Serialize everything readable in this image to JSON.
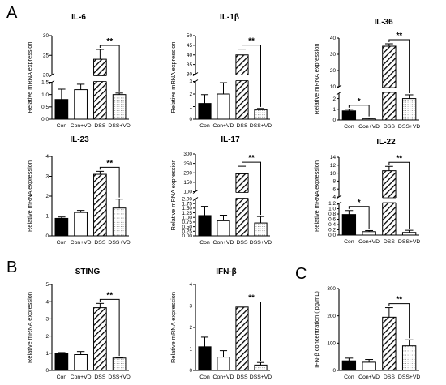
{
  "figure": {
    "panel_labels": [
      "A",
      "B",
      "C"
    ],
    "colors": {
      "ink": "#000000",
      "background": "#ffffff"
    },
    "fills": [
      "solid-black",
      "white",
      "diagonal-hatch",
      "dotted"
    ]
  },
  "chart_data": [
    {
      "id": "il6",
      "type": "bar",
      "title": "IL-6",
      "xlabel": "",
      "ylabel": "Relative mRNA expression",
      "categories": [
        "Con",
        "Con+VD",
        "DSS",
        "DSS+VD"
      ],
      "values": [
        0.8,
        1.2,
        24.0,
        1.0
      ],
      "errors": [
        0.42,
        0.22,
        2.5,
        0.06
      ],
      "axis_breaks": true,
      "ylim": [
        0,
        30
      ],
      "segments": [
        {
          "range": [
            0,
            1.5
          ],
          "ticks": [
            0.0,
            0.5,
            1.0,
            1.5
          ],
          "labels": [
            "0.0",
            "0.5",
            "1.0",
            "1.5"
          ]
        },
        {
          "range": [
            20,
            30
          ],
          "ticks": [
            20,
            25,
            30
          ],
          "labels": [
            "20",
            "25",
            "30"
          ]
        }
      ],
      "significance": [
        {
          "from": 2,
          "to": 3,
          "label": "**"
        }
      ]
    },
    {
      "id": "il1b",
      "type": "bar",
      "title": "IL-1β",
      "xlabel": "",
      "ylabel": "Relative mRNA expression",
      "categories": [
        "Con",
        "Con+VD",
        "DSS",
        "DSS+VD"
      ],
      "values": [
        1.25,
        2.0,
        40.0,
        0.75
      ],
      "errors": [
        0.7,
        0.9,
        3.0,
        0.1
      ],
      "axis_breaks": true,
      "ylim": [
        0,
        50
      ],
      "segments": [
        {
          "range": [
            0,
            3
          ],
          "ticks": [
            0,
            1,
            2,
            3
          ],
          "labels": [
            "0",
            "1",
            "2",
            "3"
          ]
        },
        {
          "range": [
            30,
            50
          ],
          "ticks": [
            30,
            35,
            40,
            45,
            50
          ],
          "labels": [
            "30",
            "35",
            "40",
            "45",
            "50"
          ]
        }
      ],
      "significance": [
        {
          "from": 2,
          "to": 3,
          "label": "**"
        }
      ]
    },
    {
      "id": "il36",
      "type": "bar",
      "title": "IL-36",
      "xlabel": "",
      "ylabel": "Relative mRNA expression",
      "categories": [
        "Con",
        "Con+VD",
        "DSS",
        "DSS+VD"
      ],
      "values": [
        0.85,
        0.1,
        35.0,
        2.0
      ],
      "errors": [
        0.15,
        0.08,
        1.5,
        0.35
      ],
      "axis_breaks": true,
      "ylim": [
        0,
        40
      ],
      "segments": [
        {
          "range": [
            0,
            2.5
          ],
          "ticks": [
            0,
            1,
            2
          ],
          "labels": [
            "0",
            "1",
            "2"
          ]
        },
        {
          "range": [
            10,
            40
          ],
          "ticks": [
            10,
            20,
            30,
            40
          ],
          "labels": [
            "10",
            "20",
            "30",
            "40"
          ]
        }
      ],
      "significance": [
        {
          "from": 0,
          "to": 1,
          "label": "*"
        },
        {
          "from": 2,
          "to": 3,
          "label": "**"
        }
      ]
    },
    {
      "id": "il23",
      "type": "bar",
      "title": "IL-23",
      "xlabel": "",
      "ylabel": "Relative mRNA expression",
      "categories": [
        "Con",
        "Con+VD",
        "DSS",
        "DSS+VD"
      ],
      "values": [
        0.88,
        1.18,
        3.1,
        1.4
      ],
      "errors": [
        0.07,
        0.1,
        0.15,
        0.45
      ],
      "axis_breaks": false,
      "ylim": [
        0,
        4
      ],
      "segments": [
        {
          "range": [
            0,
            4
          ],
          "ticks": [
            0,
            1,
            2,
            3,
            4
          ],
          "labels": [
            "0",
            "1",
            "2",
            "3",
            "4"
          ]
        }
      ],
      "significance": [
        {
          "from": 2,
          "to": 3,
          "label": "**"
        }
      ]
    },
    {
      "id": "il17",
      "type": "bar",
      "title": "IL-17",
      "xlabel": "",
      "ylabel": "Relative mRNA expression",
      "categories": [
        "Con",
        "Con+VD",
        "DSS",
        "DSS+VD"
      ],
      "values": [
        1.1,
        0.82,
        195.0,
        0.7
      ],
      "errors": [
        0.5,
        0.3,
        40.0,
        0.35
      ],
      "axis_breaks": true,
      "ylim": [
        0,
        300
      ],
      "segments": [
        {
          "range": [
            0,
            2.0
          ],
          "ticks": [
            0.0,
            0.25,
            0.5,
            0.75,
            1.0,
            1.25,
            1.5,
            1.75,
            2.0
          ],
          "labels": [
            "0.00",
            "0.25",
            "0.50",
            "0.75",
            "1.00",
            "1.25",
            "1.50",
            "1.75",
            "2.00"
          ]
        },
        {
          "range": [
            100,
            300
          ],
          "ticks": [
            100,
            150,
            200,
            250,
            300
          ],
          "labels": [
            "100",
            "150",
            "200",
            "250",
            "300"
          ]
        }
      ],
      "significance": [
        {
          "from": 2,
          "to": 3,
          "label": "**"
        }
      ]
    },
    {
      "id": "il22",
      "type": "bar",
      "title": "IL-22",
      "xlabel": "",
      "ylabel": "Relative mRNA expression",
      "categories": [
        "Con",
        "Con+VD",
        "DSS",
        "DSS+VD"
      ],
      "values": [
        0.78,
        0.13,
        10.6,
        0.1
      ],
      "errors": [
        0.15,
        0.04,
        1.1,
        0.08
      ],
      "axis_breaks": true,
      "ylim": [
        0,
        14
      ],
      "segments": [
        {
          "range": [
            0,
            1.2
          ],
          "ticks": [
            0.0,
            0.2,
            0.4,
            0.6,
            0.8,
            1.0,
            1.2
          ],
          "labels": [
            "0.0",
            "0.2",
            "0.4",
            "0.6",
            "0.8",
            "1.0",
            "1.2"
          ]
        },
        {
          "range": [
            4,
            14
          ],
          "ticks": [
            4,
            6,
            8,
            10,
            12,
            14
          ],
          "labels": [
            "4",
            "6",
            "8",
            "10",
            "12",
            "14"
          ]
        }
      ],
      "significance": [
        {
          "from": 0,
          "to": 1,
          "label": "*"
        },
        {
          "from": 2,
          "to": 3,
          "label": "**"
        }
      ]
    },
    {
      "id": "sting",
      "type": "bar",
      "title": "STING",
      "xlabel": "",
      "ylabel": "Relative mRNA expression",
      "categories": [
        "Con",
        "Con+VD",
        "DSS",
        "DSS+VD"
      ],
      "values": [
        1.0,
        0.92,
        3.65,
        0.72
      ],
      "errors": [
        0.04,
        0.18,
        0.25,
        0.03
      ],
      "axis_breaks": false,
      "ylim": [
        0,
        5
      ],
      "segments": [
        {
          "range": [
            0,
            5
          ],
          "ticks": [
            0,
            1,
            2,
            3,
            4,
            5
          ],
          "labels": [
            "0",
            "1",
            "2",
            "3",
            "4",
            "5"
          ]
        }
      ],
      "significance": [
        {
          "from": 2,
          "to": 3,
          "label": "**"
        }
      ]
    },
    {
      "id": "ifnb",
      "type": "bar",
      "title": "IFN-β",
      "xlabel": "",
      "ylabel": "Relative mRNA expression",
      "categories": [
        "Con",
        "Con+VD",
        "DSS",
        "DSS+VD"
      ],
      "values": [
        1.1,
        0.62,
        2.95,
        0.25
      ],
      "errors": [
        0.45,
        0.3,
        0.05,
        0.12
      ],
      "axis_breaks": false,
      "ylim": [
        0,
        4
      ],
      "segments": [
        {
          "range": [
            0,
            4
          ],
          "ticks": [
            0,
            1,
            2,
            3,
            4
          ],
          "labels": [
            "0",
            "1",
            "2",
            "3",
            "4"
          ]
        }
      ],
      "significance": [
        {
          "from": 2,
          "to": 3,
          "label": "**"
        }
      ]
    },
    {
      "id": "ifnb-conc",
      "type": "bar",
      "title": "",
      "xlabel": "",
      "ylabel": "IFN-β concentration ( pg/mL)",
      "categories": [
        "Con",
        "Con+VD",
        "DSS",
        "DSS+VD"
      ],
      "values": [
        35,
        30,
        195,
        90
      ],
      "errors": [
        10,
        10,
        35,
        22
      ],
      "axis_breaks": false,
      "ylim": [
        0,
        300
      ],
      "segments": [
        {
          "range": [
            0,
            300
          ],
          "ticks": [
            0,
            100,
            200,
            300
          ],
          "labels": [
            "0",
            "100",
            "200",
            "300"
          ]
        }
      ],
      "significance": [
        {
          "from": 2,
          "to": 3,
          "label": "**"
        }
      ]
    }
  ]
}
